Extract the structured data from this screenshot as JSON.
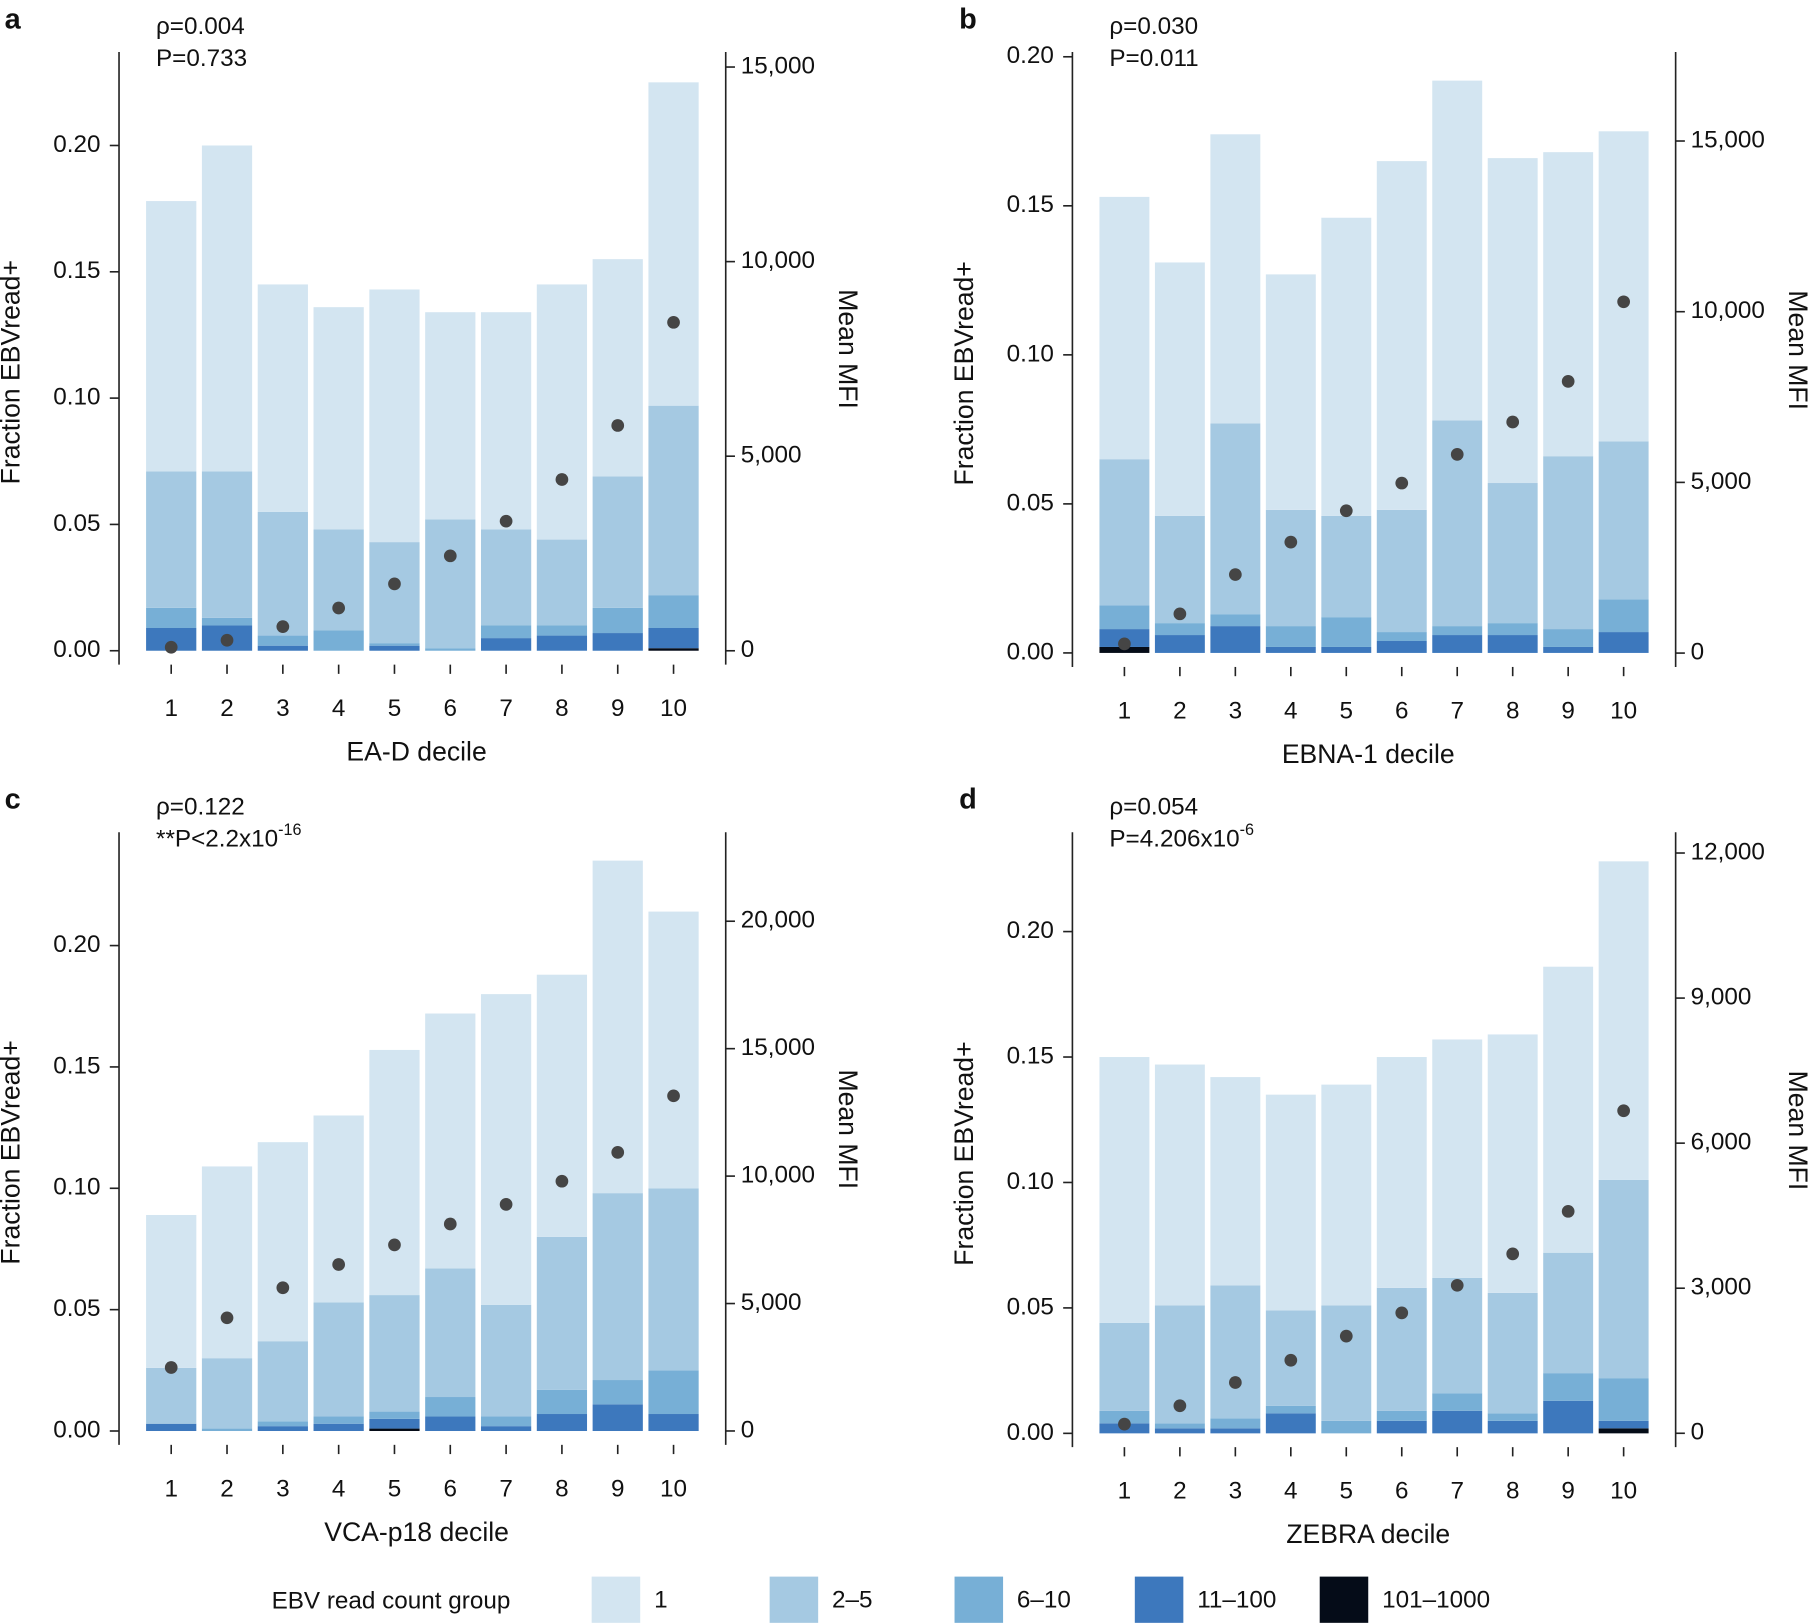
{
  "legend": {
    "title": "EBV read count group",
    "names": [
      "101–1000",
      "11–100",
      "6–10",
      "2–5",
      "1"
    ],
    "colors": [
      "#050c18",
      "#3d78bd",
      "#77afd6",
      "#a5c9e2",
      "#d3e5f1"
    ]
  },
  "chart_data": [
    {
      "type": "stacked-bar",
      "panel": "a",
      "rho": "ρ=0.004",
      "p_text": "P=0.733",
      "x_label": "EA-D decile",
      "y_label": "Fraction EBVread+",
      "y2_label": "Mean MFI",
      "categories": [
        "1",
        "2",
        "3",
        "4",
        "5",
        "6",
        "7",
        "8",
        "9",
        "10"
      ],
      "series": [
        {
          "values": [
            0,
            0,
            0,
            0,
            0,
            0,
            0,
            0,
            0,
            0.001
          ]
        },
        {
          "values": [
            0.009,
            0.01,
            0.002,
            0,
            0.002,
            0,
            0.005,
            0.006,
            0.007,
            0.008
          ]
        },
        {
          "values": [
            0.008,
            0.003,
            0.004,
            0.008,
            0.001,
            0.001,
            0.005,
            0.004,
            0.01,
            0.013
          ]
        },
        {
          "values": [
            0.054,
            0.058,
            0.049,
            0.04,
            0.04,
            0.051,
            0.038,
            0.034,
            0.052,
            0.075
          ]
        },
        {
          "values": [
            0.107,
            0.129,
            0.09,
            0.088,
            0.1,
            0.082,
            0.086,
            0.101,
            0.086,
            0.128
          ]
        }
      ],
      "points": {
        "axis": "y2",
        "color": "#454545",
        "values": [
          90,
          270,
          620,
          1100,
          1720,
          2440,
          3330,
          4400,
          5790,
          8440
        ]
      },
      "ylim": [
        -0.0055,
        0.237
      ],
      "yticks": [
        {
          "value": 0,
          "label": "0.00"
        },
        0.05,
        {
          "value": 0.1,
          "label": "0.10"
        },
        0.15,
        {
          "value": 0.2,
          "label": "0.20"
        }
      ],
      "y2lim": [
        -356,
        15386
      ],
      "y2ticks": [
        0,
        {
          "value": 5000,
          "label": "5,000"
        },
        {
          "value": 10000,
          "label": "10,000"
        },
        {
          "value": 15000,
          "label": "15,000"
        }
      ]
    },
    {
      "type": "stacked-bar",
      "panel": "b",
      "rho": "ρ=0.030",
      "p_text": "P=0.011",
      "x_label": "EBNA-1 decile",
      "y_label": "Fraction EBVread+",
      "y2_label": "Mean MFI",
      "categories": [
        "1",
        "2",
        "3",
        "4",
        "5",
        "6",
        "7",
        "8",
        "9",
        "10"
      ],
      "series": [
        {
          "values": [
            0.002,
            0,
            0,
            0,
            0,
            0,
            0,
            0,
            0,
            0
          ]
        },
        {
          "values": [
            0.006,
            0.006,
            0.009,
            0.002,
            0.002,
            0.004,
            0.006,
            0.006,
            0.002,
            0.007
          ]
        },
        {
          "values": [
            0.008,
            0.004,
            0.004,
            0.007,
            0.01,
            0.003,
            0.003,
            0.004,
            0.006,
            0.011
          ]
        },
        {
          "values": [
            0.049,
            0.036,
            0.064,
            0.039,
            0.034,
            0.041,
            0.069,
            0.047,
            0.058,
            0.053
          ]
        },
        {
          "values": [
            0.088,
            0.085,
            0.097,
            0.079,
            0.1,
            0.117,
            0.114,
            0.109,
            0.102,
            0.104
          ]
        }
      ],
      "points": {
        "axis": "y2",
        "color": "#454545",
        "values": [
          270,
          1150,
          2300,
          3250,
          4170,
          4980,
          5820,
          6770,
          7960,
          10290
        ]
      },
      "ylim": [
        -0.0047,
        0.2016
      ],
      "yticks": [
        {
          "value": 0,
          "label": "0.00"
        },
        0.05,
        {
          "value": 0.1,
          "label": "0.10"
        },
        0.15,
        {
          "value": 0.2,
          "label": "0.20"
        }
      ],
      "y2lim": [
        -406,
        17607
      ],
      "y2ticks": [
        0,
        {
          "value": 5000,
          "label": "5,000"
        },
        {
          "value": 10000,
          "label": "10,000"
        },
        {
          "value": 15000,
          "label": "15,000"
        }
      ]
    },
    {
      "type": "stacked-bar",
      "panel": "c",
      "rho": "ρ=0.122",
      "p_text": "**P<2.2x10",
      "p_exponent": "-16",
      "x_label": "VCA-p18 decile",
      "y_label": "Fraction EBVread+",
      "y2_label": "Mean MFI",
      "categories": [
        "1",
        "2",
        "3",
        "4",
        "5",
        "6",
        "7",
        "8",
        "9",
        "10"
      ],
      "series": [
        {
          "values": [
            0,
            0,
            0,
            0,
            0.001,
            0,
            0,
            0,
            0,
            0
          ]
        },
        {
          "values": [
            0.003,
            0,
            0.002,
            0.003,
            0.004,
            0.006,
            0.002,
            0.007,
            0.011,
            0.007
          ]
        },
        {
          "values": [
            0,
            0.001,
            0.002,
            0.003,
            0.003,
            0.008,
            0.004,
            0.01,
            0.01,
            0.018
          ]
        },
        {
          "values": [
            0.023,
            0.029,
            0.033,
            0.047,
            0.048,
            0.053,
            0.046,
            0.063,
            0.077,
            0.075
          ]
        },
        {
          "values": [
            0.063,
            0.079,
            0.082,
            0.077,
            0.101,
            0.105,
            0.128,
            0.108,
            0.137,
            0.114
          ]
        }
      ],
      "points": {
        "axis": "y2",
        "color": "#454545",
        "values": [
          2490,
          4440,
          5620,
          6530,
          7300,
          8120,
          8890,
          9800,
          10930,
          13150
        ]
      },
      "ylim": [
        -0.0057,
        0.2467
      ],
      "yticks": [
        {
          "value": 0,
          "label": "0.00"
        },
        0.05,
        {
          "value": 0.1,
          "label": "0.10"
        },
        0.15,
        {
          "value": 0.2,
          "label": "0.20"
        }
      ],
      "y2lim": [
        -544,
        23492
      ],
      "y2ticks": [
        0,
        {
          "value": 5000,
          "label": "5,000"
        },
        {
          "value": 10000,
          "label": "10,000"
        },
        {
          "value": 15000,
          "label": "15,000"
        },
        {
          "value": 20000,
          "label": "20,000"
        }
      ]
    },
    {
      "type": "stacked-bar",
      "panel": "d",
      "rho": "ρ=0.054",
      "p_text": "P=4.206x10",
      "p_exponent": "-6",
      "x_label": "ZEBRA decile",
      "y_label": "Fraction EBVread+",
      "y2_label": "Mean MFI",
      "categories": [
        "1",
        "2",
        "3",
        "4",
        "5",
        "6",
        "7",
        "8",
        "9",
        "10"
      ],
      "series": [
        {
          "values": [
            0,
            0,
            0,
            0,
            0,
            0,
            0,
            0,
            0,
            0.002
          ]
        },
        {
          "values": [
            0.004,
            0.002,
            0.002,
            0.008,
            0,
            0.005,
            0.009,
            0.005,
            0.013,
            0.003
          ]
        },
        {
          "values": [
            0.005,
            0.002,
            0.004,
            0.003,
            0.005,
            0.004,
            0.007,
            0.003,
            0.011,
            0.017
          ]
        },
        {
          "values": [
            0.035,
            0.047,
            0.053,
            0.038,
            0.046,
            0.049,
            0.046,
            0.048,
            0.048,
            0.079
          ]
        },
        {
          "values": [
            0.106,
            0.096,
            0.083,
            0.086,
            0.088,
            0.092,
            0.095,
            0.103,
            0.114,
            0.127
          ]
        }
      ],
      "points": {
        "axis": "y2",
        "color": "#454545",
        "values": [
          190,
          570,
          1050,
          1510,
          2010,
          2490,
          3060,
          3710,
          4590,
          6670
        ]
      },
      "ylim": [
        -0.0055,
        0.2396
      ],
      "yticks": [
        {
          "value": 0,
          "label": "0.00"
        },
        0.05,
        {
          "value": 0.1,
          "label": "0.10"
        },
        0.15,
        {
          "value": 0.2,
          "label": "0.20"
        }
      ],
      "y2lim": [
        -287,
        12430
      ],
      "y2ticks": [
        0,
        {
          "value": 3000,
          "label": "3,000"
        },
        {
          "value": 6000,
          "label": "6,000"
        },
        {
          "value": 9000,
          "label": "9,000"
        },
        {
          "value": 12000,
          "label": "12,000"
        }
      ]
    }
  ]
}
